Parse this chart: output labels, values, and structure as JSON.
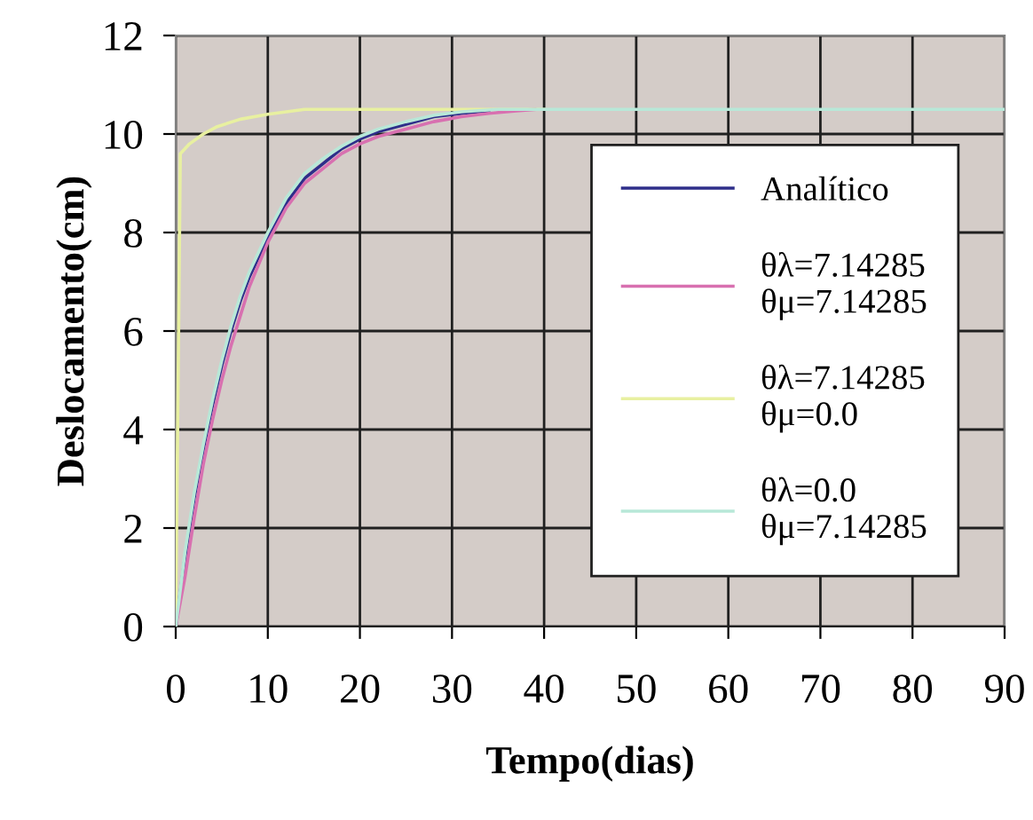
{
  "chart_data": {
    "type": "line",
    "xlabel": "Tempo(dias)",
    "ylabel": "Deslocamento(cm)",
    "xlim": [
      0,
      90
    ],
    "xticks": [
      0,
      10,
      20,
      30,
      40,
      50,
      60,
      70,
      80,
      90
    ],
    "ylim": [
      0,
      12
    ],
    "yticks": [
      0,
      2,
      4,
      6,
      8,
      10,
      12
    ],
    "grid": true,
    "legend": "right",
    "marker": "none",
    "line_style": "solid",
    "series": [
      {
        "name": "Analítico",
        "color": "#2e2e8a",
        "x": [
          0,
          1,
          2,
          3,
          4,
          5,
          6,
          7,
          8,
          10,
          12,
          14,
          16,
          18,
          20,
          22,
          25,
          28,
          31,
          34
        ],
        "values": [
          0,
          1.4,
          2.6,
          3.6,
          4.5,
          5.3,
          6.0,
          6.6,
          7.1,
          7.9,
          8.6,
          9.1,
          9.4,
          9.7,
          9.9,
          10.05,
          10.2,
          10.35,
          10.42,
          10.47
        ]
      },
      {
        "name": "θλ=7.14285\nθμ=7.14285",
        "color": "#d870b0",
        "x": [
          0,
          1,
          2,
          3,
          4,
          5,
          6,
          7,
          8,
          10,
          12,
          14,
          16,
          18,
          20,
          22,
          25,
          28,
          31,
          34,
          37,
          39
        ],
        "values": [
          0,
          1.0,
          2.2,
          3.3,
          4.2,
          5.0,
          5.7,
          6.3,
          6.9,
          7.8,
          8.5,
          9.0,
          9.3,
          9.6,
          9.8,
          9.95,
          10.1,
          10.25,
          10.35,
          10.42,
          10.47,
          10.5
        ]
      },
      {
        "name": "θλ=7.14285\nθμ=0.0",
        "color": "#e8f0a0",
        "x": [
          0,
          0.5,
          1.5,
          3,
          4.5,
          7,
          10,
          12,
          14,
          40
        ],
        "values": [
          0,
          9.6,
          9.8,
          10.0,
          10.15,
          10.3,
          10.4,
          10.45,
          10.5,
          10.5
        ]
      },
      {
        "name": "θλ=0.0\nθμ=7.14285",
        "color": "#b8e8d8",
        "x": [
          0,
          1,
          2,
          3,
          4,
          5,
          6,
          7,
          8,
          10,
          12,
          14,
          16,
          18,
          20,
          22,
          25,
          28,
          31,
          35,
          90
        ],
        "values": [
          0,
          1.5,
          2.7,
          3.7,
          4.6,
          5.4,
          6.1,
          6.7,
          7.2,
          8.0,
          8.7,
          9.2,
          9.5,
          9.75,
          9.95,
          10.1,
          10.25,
          10.38,
          10.45,
          10.5,
          10.5
        ]
      }
    ]
  }
}
